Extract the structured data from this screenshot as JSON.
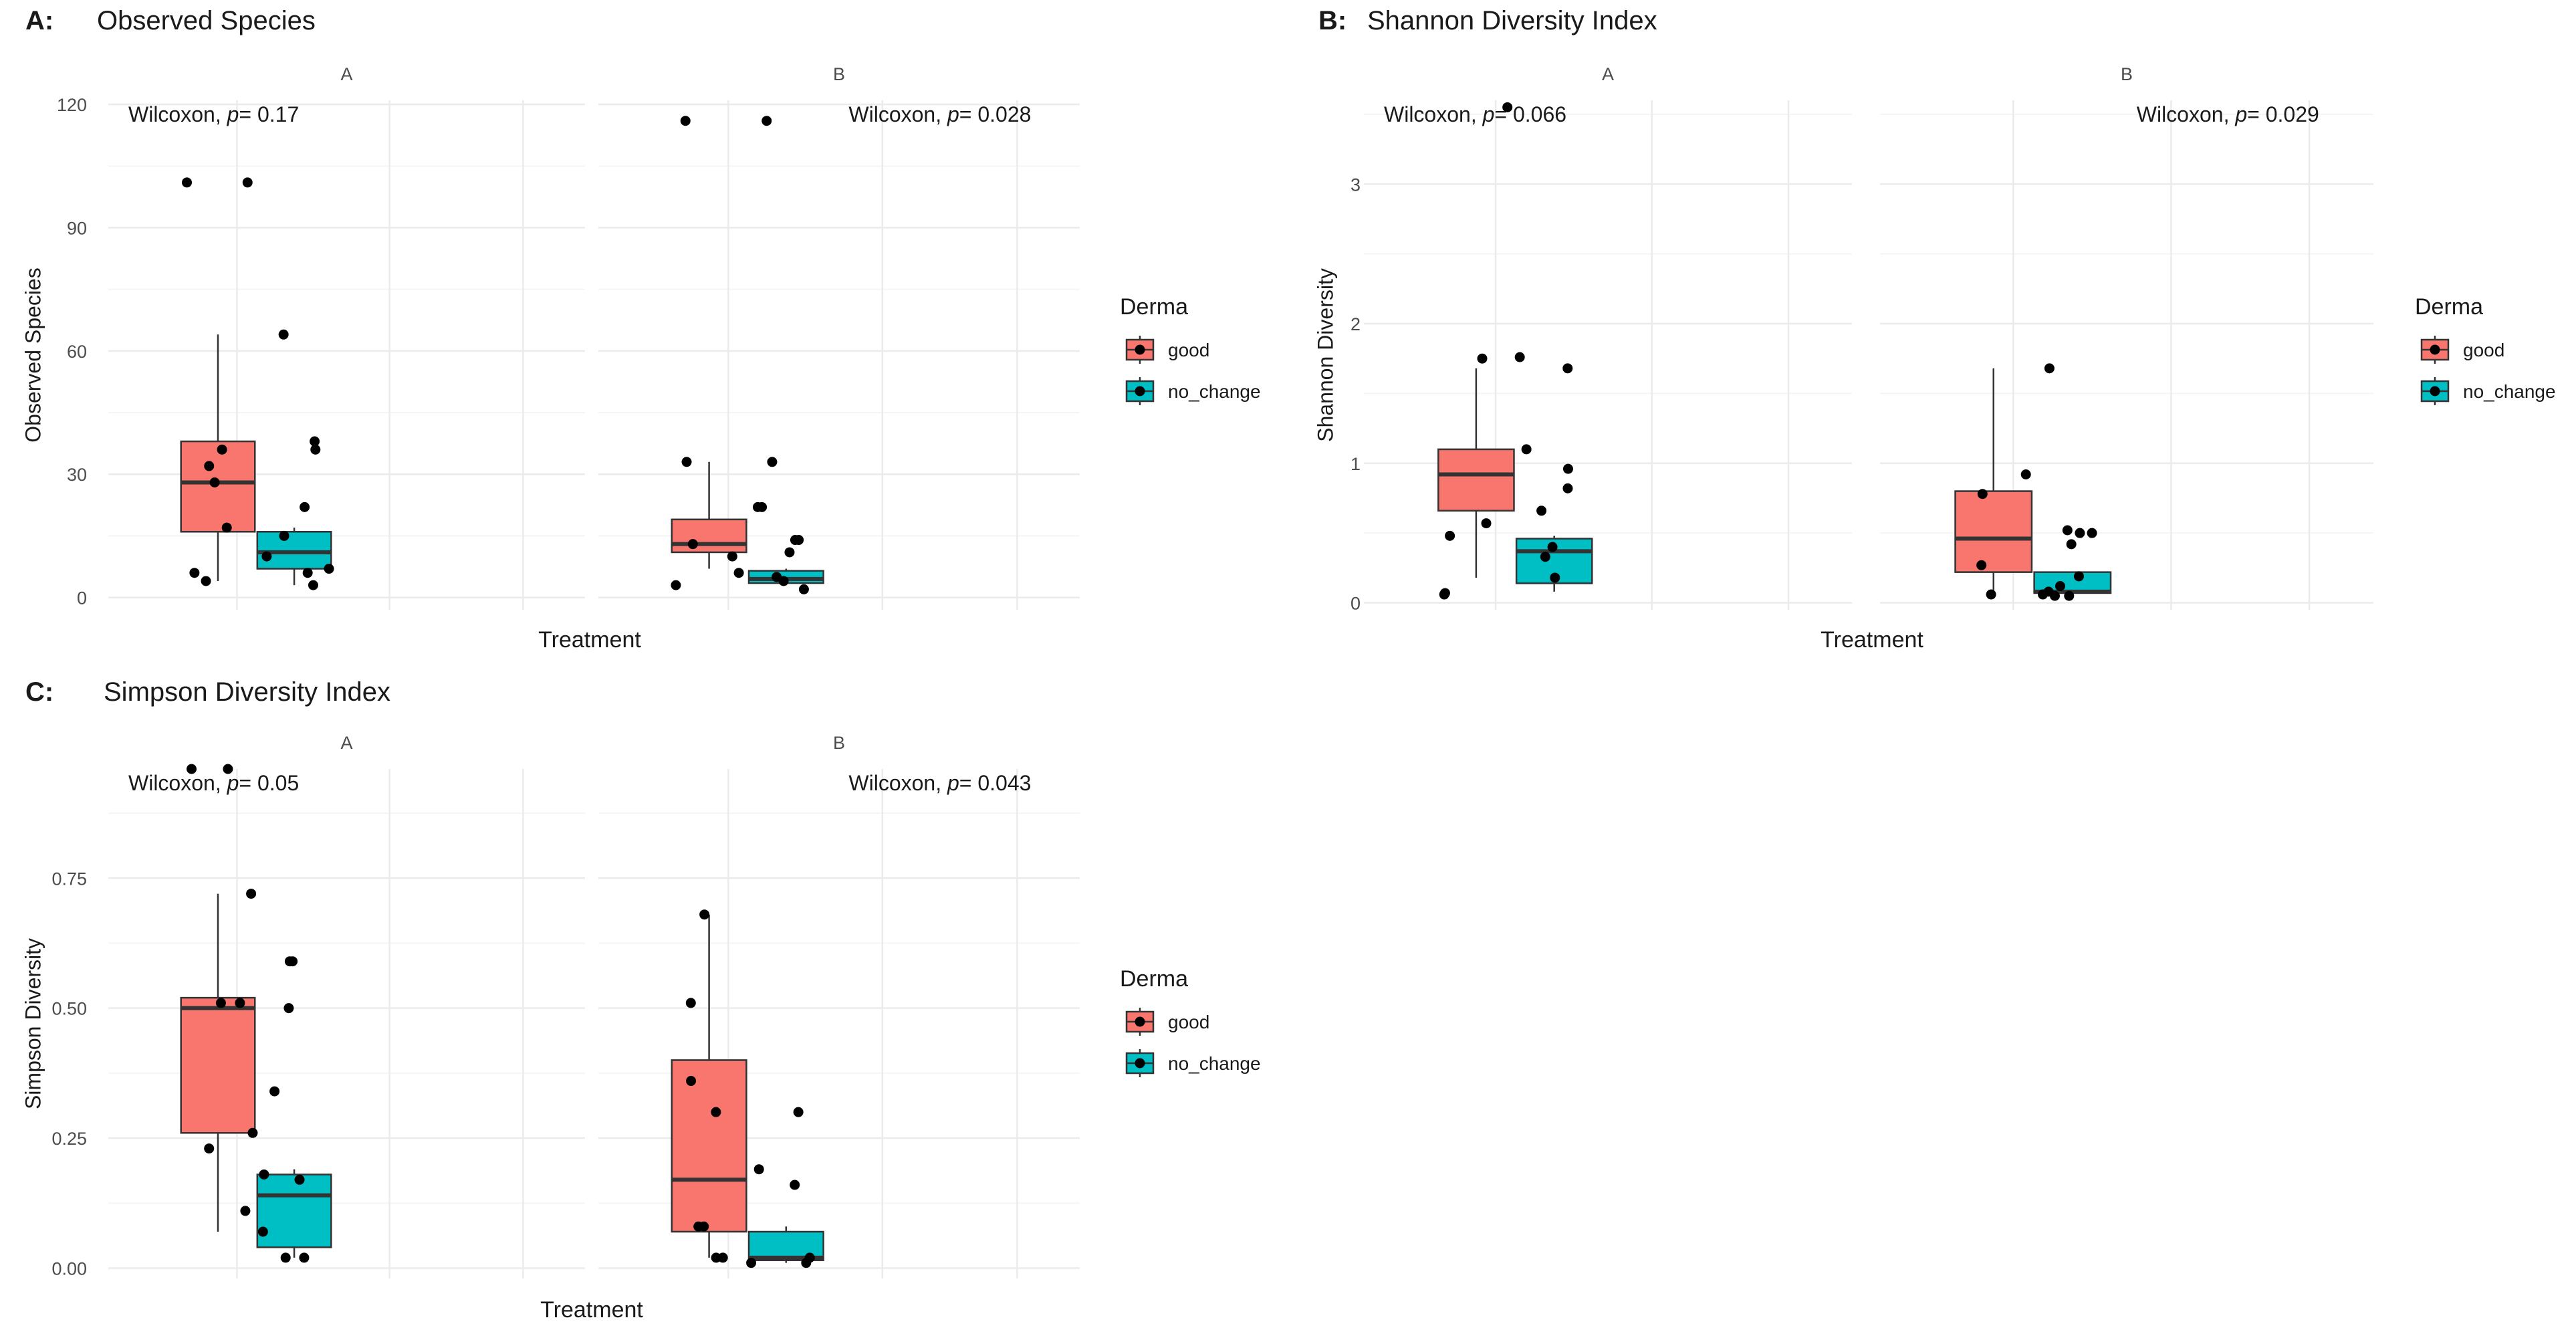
{
  "figure": {
    "colors": {
      "good": "#F8766D",
      "no_change": "#00BFC4",
      "grid_major": "#EBEBEB",
      "grid_minor": "#F5F5F5",
      "text": "#1A1A1A",
      "tick_text": "#4D4D4D"
    }
  },
  "chart_data": [
    {
      "type": "boxplot",
      "panel_letter": "A:",
      "title": "Observed Species",
      "ylabel": "Observed Species",
      "xlabel": "Treatment",
      "ylim": [
        -3,
        121
      ],
      "yticks": [
        0,
        30,
        60,
        90,
        120
      ],
      "ytick_labels": [
        "0",
        "30",
        "60",
        "90",
        "120"
      ],
      "legend": {
        "title": "Derma",
        "items": [
          "good",
          "no_change"
        ]
      },
      "facets": [
        {
          "label": "A",
          "annotation": "Wilcoxon, p= 0.17",
          "boxes": [
            {
              "group": "good",
              "min": 4,
              "q1": 16,
              "median": 28,
              "q3": 38,
              "max": 64,
              "points": [
                101,
                101,
                36,
                32,
                28,
                17,
                6,
                4
              ]
            },
            {
              "group": "no_change",
              "min": 3,
              "q1": 7,
              "median": 11,
              "q3": 16,
              "max": 17,
              "points": [
                64,
                38,
                36,
                22,
                15,
                10,
                7,
                6,
                3
              ]
            }
          ]
        },
        {
          "label": "B",
          "annotation": "Wilcoxon, p= 0.028",
          "boxes": [
            {
              "group": "good",
              "min": 7,
              "q1": 11,
              "median": 13,
              "q3": 19,
              "max": 33,
              "points": [
                116,
                33,
                13,
                10,
                6,
                3
              ]
            },
            {
              "group": "no_change",
              "min": 3,
              "q1": 3.5,
              "median": 4.5,
              "q3": 6.5,
              "max": 7,
              "points": [
                116,
                33,
                22,
                22,
                14,
                14,
                11,
                5,
                4,
                2
              ]
            }
          ]
        }
      ]
    },
    {
      "type": "boxplot",
      "panel_letter": "B:",
      "title": "Shannon Diversity Index",
      "ylabel": "Shannon Diversity",
      "xlabel": "Treatment",
      "ylim": [
        -0.05,
        3.6
      ],
      "yticks": [
        0,
        1,
        2,
        3
      ],
      "ytick_labels": [
        "0",
        "1",
        "2",
        "3"
      ],
      "legend": {
        "title": "Derma",
        "items": [
          "good",
          "no_change"
        ]
      },
      "facets": [
        {
          "label": "A",
          "annotation": "Wilcoxon, p= 0.066",
          "boxes": [
            {
              "group": "good",
              "min": 0.18,
              "q1": 0.66,
              "median": 0.92,
              "q3": 1.1,
              "max": 1.68,
              "points": [
                3.55,
                1.75,
                0.57,
                0.48,
                0.07,
                0.06
              ]
            },
            {
              "group": "no_change",
              "min": 0.08,
              "q1": 0.14,
              "median": 0.37,
              "q3": 0.46,
              "max": 0.48,
              "points": [
                1.76,
                1.68,
                1.1,
                0.96,
                0.82,
                0.66,
                0.4,
                0.33,
                0.18
              ]
            }
          ]
        },
        {
          "label": "B",
          "annotation": "Wilcoxon, p= 0.029",
          "boxes": [
            {
              "group": "good",
              "min": 0.06,
              "q1": 0.22,
              "median": 0.46,
              "q3": 0.8,
              "max": 1.68,
              "points": [
                0.92,
                0.78,
                0.27,
                0.06
              ]
            },
            {
              "group": "no_change",
              "min": 0.05,
              "q1": 0.07,
              "median": 0.08,
              "q3": 0.22,
              "max": 0.22,
              "points": [
                1.68,
                0.52,
                0.5,
                0.5,
                0.42,
                0.19,
                0.12,
                0.08,
                0.06,
                0.05,
                0.05
              ]
            }
          ]
        }
      ]
    },
    {
      "type": "boxplot",
      "panel_letter": "C:",
      "title": "Simpson Diversity Index",
      "ylabel": "Simpson Diversity",
      "xlabel": "Treatment",
      "ylim": [
        -0.02,
        0.96
      ],
      "yticks": [
        0,
        0.25,
        0.5,
        0.75
      ],
      "ytick_labels": [
        "0.00",
        "0.25",
        "0.50",
        "0.75"
      ],
      "legend": {
        "title": "Derma",
        "items": [
          "good",
          "no_change"
        ]
      },
      "facets": [
        {
          "label": "A",
          "annotation": "Wilcoxon, p= 0.05",
          "boxes": [
            {
              "group": "good",
              "min": 0.07,
              "q1": 0.26,
              "median": 0.5,
              "q3": 0.52,
              "max": 0.72,
              "points": [
                0.96,
                0.96,
                0.72,
                0.51,
                0.51,
                0.26,
                0.23,
                0.11
              ]
            },
            {
              "group": "no_change",
              "min": 0.02,
              "q1": 0.04,
              "median": 0.14,
              "q3": 0.18,
              "max": 0.19,
              "points": [
                0.59,
                0.59,
                0.5,
                0.34,
                0.18,
                0.17,
                0.07,
                0.02,
                0.02
              ]
            }
          ]
        },
        {
          "label": "B",
          "annotation": "Wilcoxon, p= 0.043",
          "boxes": [
            {
              "group": "good",
              "min": 0.02,
              "q1": 0.07,
              "median": 0.17,
              "q3": 0.4,
              "max": 0.68,
              "points": [
                0.68,
                0.51,
                0.36,
                0.3,
                0.08,
                0.08,
                0.02,
                0.02
              ]
            },
            {
              "group": "no_change",
              "min": 0.01,
              "q1": 0.015,
              "median": 0.02,
              "q3": 0.07,
              "max": 0.08,
              "points": [
                0.3,
                0.19,
                0.16,
                0.02,
                0.01,
                0.01
              ]
            }
          ]
        }
      ]
    }
  ]
}
